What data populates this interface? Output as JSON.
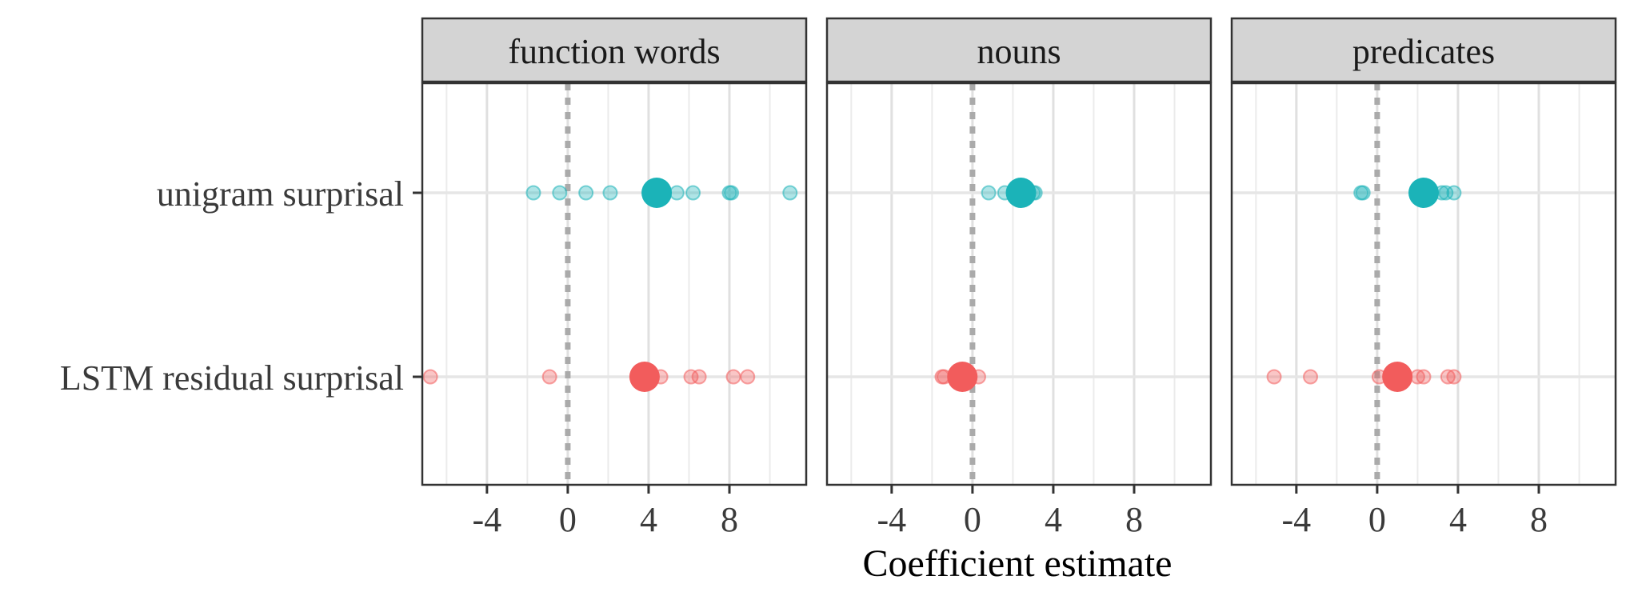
{
  "chart_data": {
    "type": "scatter",
    "xlabel": "Coefficient estimate",
    "ylabel": "",
    "xlim": [
      -7.2,
      11.8
    ],
    "x_ticks": [
      -4,
      0,
      4,
      8
    ],
    "x_tick_labels": [
      "-4",
      "0",
      "4",
      "8"
    ],
    "y_categories": [
      "unigram surprisal",
      "LSTM residual surprisal"
    ],
    "reference_line_x": 0,
    "grid": true,
    "colors": {
      "unigram surprisal": "#1bb3b8",
      "LSTM residual surprisal": "#f25c5c"
    },
    "panels": [
      {
        "label": "function words",
        "series": [
          {
            "category": "unigram surprisal",
            "estimate": 4.4,
            "individual": [
              -1.7,
              -0.4,
              0.9,
              2.1,
              5.4,
              6.2,
              8.0,
              8.1,
              11.0
            ]
          },
          {
            "category": "LSTM residual surprisal",
            "estimate": 3.8,
            "individual": [
              -6.8,
              -0.9,
              4.6,
              6.1,
              6.5,
              8.2,
              8.9
            ]
          }
        ]
      },
      {
        "label": "nouns",
        "series": [
          {
            "category": "unigram surprisal",
            "estimate": 2.4,
            "individual": [
              0.8,
              1.6,
              3.1,
              3.0
            ]
          },
          {
            "category": "LSTM residual surprisal",
            "estimate": -0.5,
            "individual": [
              -1.5,
              -1.4,
              0.3
            ]
          }
        ]
      },
      {
        "label": "predicates",
        "series": [
          {
            "category": "unigram surprisal",
            "estimate": 2.3,
            "individual": [
              -0.8,
              -0.7,
              3.2,
              3.4,
              3.8
            ]
          },
          {
            "category": "LSTM residual surprisal",
            "estimate": 1.0,
            "individual": [
              -5.1,
              -3.3,
              0.1,
              2.0,
              2.3,
              3.5,
              3.8
            ]
          }
        ]
      }
    ]
  }
}
